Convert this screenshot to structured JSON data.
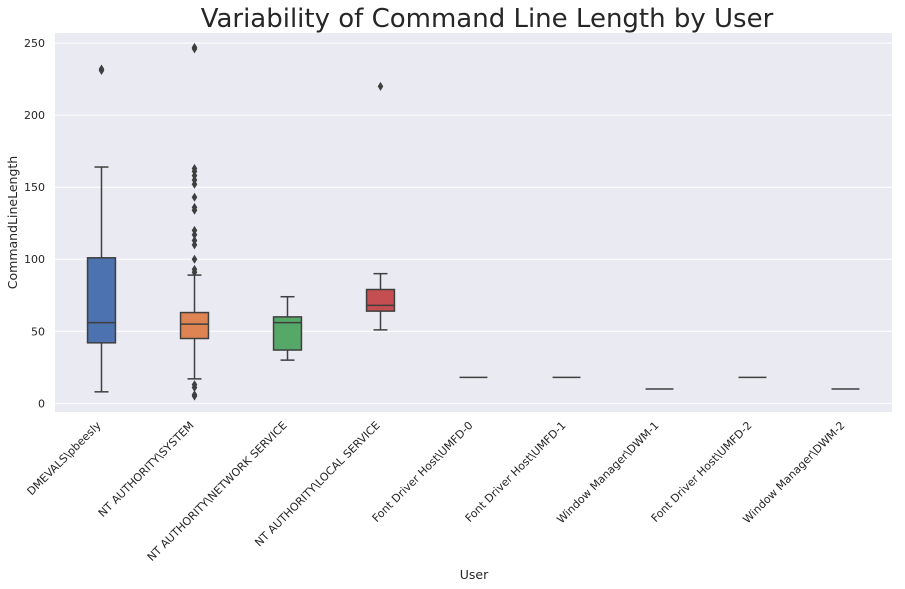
{
  "chart_data": {
    "type": "box",
    "title": "Variability of Command Line Length by User",
    "xlabel": "User",
    "ylabel": "CommandLineLength",
    "ylim": [
      -6,
      257
    ],
    "yticks": [
      0,
      50,
      100,
      150,
      200,
      250
    ],
    "grid": true,
    "categories": [
      "DMEVALS\\pbeesly",
      "NT AUTHORITY\\SYSTEM",
      "NT AUTHORITY\\NETWORK SERVICE",
      "NT AUTHORITY\\LOCAL SERVICE",
      "Font Driver Host\\UMFD-0",
      "Font Driver Host\\UMFD-1",
      "Window Manager\\DWM-1",
      "Font Driver Host\\UMFD-2",
      "Window Manager\\DWM-2"
    ],
    "series": [
      {
        "name": "DMEVALS\\pbeesly",
        "color": "#4c72b0",
        "whislo": 8,
        "q1": 42,
        "med": 56,
        "q3": 101,
        "whishi": 164,
        "fliers": [
          231,
          232
        ]
      },
      {
        "name": "NT AUTHORITY\\SYSTEM",
        "color": "#dd8452",
        "whislo": 17,
        "q1": 45,
        "med": 55,
        "q3": 63,
        "whishi": 89,
        "fliers": [
          5,
          6,
          11,
          13,
          91,
          93,
          100,
          110,
          113,
          117,
          120,
          134,
          136,
          143,
          152,
          155,
          158,
          161,
          163,
          246,
          247
        ]
      },
      {
        "name": "NT AUTHORITY\\NETWORK SERVICE",
        "color": "#55a868",
        "whislo": 30,
        "q1": 37,
        "med": 56,
        "q3": 60,
        "whishi": 74,
        "fliers": []
      },
      {
        "name": "NT AUTHORITY\\LOCAL SERVICE",
        "color": "#c44e52",
        "whislo": 51,
        "q1": 64,
        "med": 68,
        "q3": 79,
        "whishi": 90,
        "fliers": [
          220
        ]
      },
      {
        "name": "Font Driver Host\\UMFD-0",
        "color": "#8172b3",
        "whislo": 18,
        "q1": 18,
        "med": 18,
        "q3": 18,
        "whishi": 18,
        "fliers": []
      },
      {
        "name": "Font Driver Host\\UMFD-1",
        "color": "#937860",
        "whislo": 18,
        "q1": 18,
        "med": 18,
        "q3": 18,
        "whishi": 18,
        "fliers": []
      },
      {
        "name": "Window Manager\\DWM-1",
        "color": "#da8bc3",
        "whislo": 10,
        "q1": 10,
        "med": 10,
        "q3": 10,
        "whishi": 10,
        "fliers": []
      },
      {
        "name": "Font Driver Host\\UMFD-2",
        "color": "#8c8c8c",
        "whislo": 18,
        "q1": 18,
        "med": 18,
        "q3": 18,
        "whishi": 18,
        "fliers": []
      },
      {
        "name": "Window Manager\\DWM-2",
        "color": "#ccb974",
        "whislo": 10,
        "q1": 10,
        "med": 10,
        "q3": 10,
        "whishi": 10,
        "fliers": []
      }
    ]
  },
  "colors": {
    "background": "#eaeaf2",
    "grid": "#ffffff",
    "box_edge": "#3f3f3f"
  }
}
